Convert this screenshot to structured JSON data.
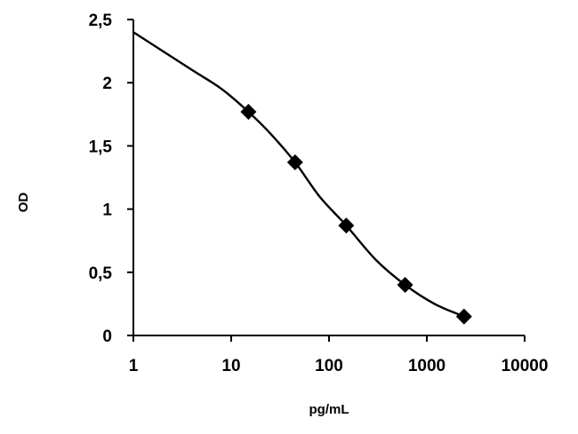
{
  "chart_data": {
    "type": "line",
    "xscale": "log",
    "xlabel": "pg/mL",
    "ylabel": "OD",
    "xlim": [
      1,
      10000
    ],
    "ylim": [
      0,
      2.5
    ],
    "xticks": [
      {
        "value": 1,
        "label": "1"
      },
      {
        "value": 10,
        "label": "10"
      },
      {
        "value": 100,
        "label": "100"
      },
      {
        "value": 1000,
        "label": "1000"
      },
      {
        "value": 10000,
        "label": "10000"
      }
    ],
    "yticks": [
      {
        "value": 0,
        "label": "0"
      },
      {
        "value": 0.5,
        "label": "0,5"
      },
      {
        "value": 1,
        "label": "1"
      },
      {
        "value": 1.5,
        "label": "1,5"
      },
      {
        "value": 2,
        "label": "2"
      },
      {
        "value": 2.5,
        "label": "2,5"
      }
    ],
    "grid": false,
    "legend": "none",
    "series": [
      {
        "marker": "diamond",
        "color": "#000000",
        "points": [
          {
            "x": 15,
            "y": 1.77
          },
          {
            "x": 45,
            "y": 1.37
          },
          {
            "x": 150,
            "y": 0.87
          },
          {
            "x": 600,
            "y": 0.4
          },
          {
            "x": 2400,
            "y": 0.15
          }
        ]
      }
    ],
    "fit_curve": {
      "color": "#000000",
      "points": [
        {
          "x": 1,
          "y": 2.4
        },
        {
          "x": 4,
          "y": 2.1
        },
        {
          "x": 8,
          "y": 1.95
        },
        {
          "x": 15,
          "y": 1.77
        },
        {
          "x": 25,
          "y": 1.6
        },
        {
          "x": 45,
          "y": 1.37
        },
        {
          "x": 80,
          "y": 1.1
        },
        {
          "x": 150,
          "y": 0.87
        },
        {
          "x": 300,
          "y": 0.6
        },
        {
          "x": 600,
          "y": 0.4
        },
        {
          "x": 1200,
          "y": 0.25
        },
        {
          "x": 2400,
          "y": 0.15
        }
      ]
    }
  }
}
